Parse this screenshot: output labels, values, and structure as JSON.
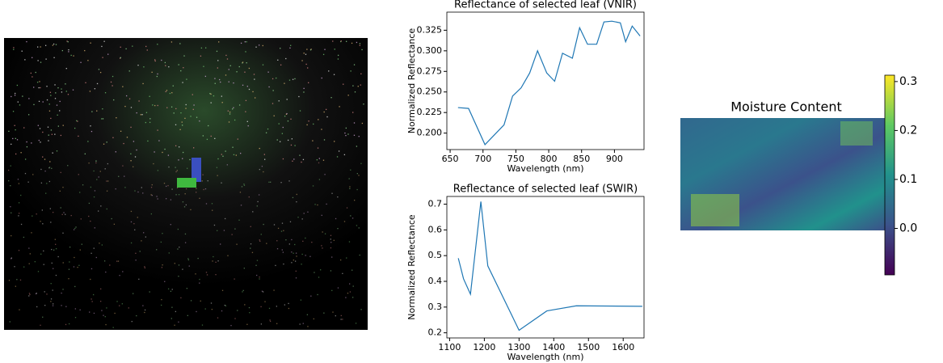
{
  "chart_data": [
    {
      "type": "line",
      "title": "Reflectance of selected leaf (VNIR)",
      "xlabel": "Wavelength (nm)",
      "ylabel": "Normalized Reflectance",
      "x": [
        662,
        678,
        703,
        732,
        745,
        758,
        771,
        783,
        797,
        809,
        821,
        836,
        847,
        859,
        873,
        884,
        896,
        909,
        917,
        927,
        939
      ],
      "series": [
        {
          "color": "#1f77b4",
          "values": [
            0.231,
            0.23,
            0.186,
            0.21,
            0.245,
            0.255,
            0.273,
            0.3,
            0.273,
            0.263,
            0.297,
            0.291,
            0.328,
            0.308,
            0.308,
            0.335,
            0.336,
            0.334,
            0.311,
            0.33,
            0.318
          ]
        }
      ],
      "xlim": [
        645,
        945
      ],
      "xticks": [
        650,
        700,
        750,
        800,
        850,
        900
      ],
      "ylim": [
        0.18,
        0.347
      ],
      "yticks": [
        {
          "value": 0.2,
          "label": "0.200"
        },
        {
          "value": 0.225,
          "label": "0.225"
        },
        {
          "value": 0.25,
          "label": "0.250"
        },
        {
          "value": 0.275,
          "label": "0.275"
        },
        {
          "value": 0.3,
          "label": "0.300"
        },
        {
          "value": 0.325,
          "label": "0.325"
        }
      ]
    },
    {
      "type": "line",
      "title": "Reflectance of selected leaf (SWIR)",
      "xlabel": "Wavelength (nm)",
      "ylabel": "Normalized Reflectance",
      "x": [
        1125,
        1140,
        1160,
        1190,
        1210,
        1300,
        1380,
        1465,
        1655
      ],
      "series": [
        {
          "color": "#1f77b4",
          "values": [
            0.49,
            0.41,
            0.35,
            0.71,
            0.46,
            0.21,
            0.285,
            0.305,
            0.303
          ]
        }
      ],
      "xlim": [
        1092,
        1660
      ],
      "xticks": [
        1100,
        1200,
        1300,
        1400,
        1500,
        1600
      ],
      "ylim": [
        0.18,
        0.73
      ],
      "yticks": [
        0.2,
        0.3,
        0.4,
        0.5,
        0.6,
        0.7
      ]
    },
    {
      "type": "heatmap",
      "title": "Moisture Content",
      "clim": [
        -0.095,
        0.313
      ],
      "cticks": [
        {
          "value": 0,
          "label": "0.0"
        },
        0.1,
        0.2,
        0.3
      ]
    }
  ]
}
